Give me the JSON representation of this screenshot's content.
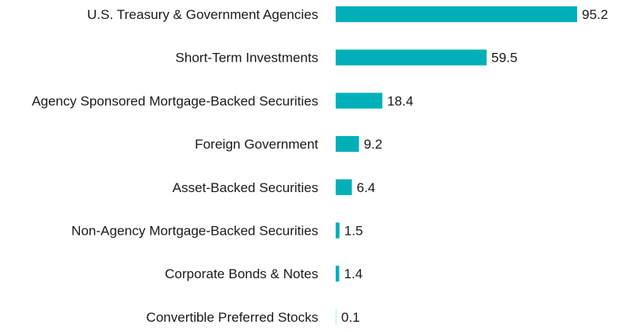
{
  "chart_data": {
    "type": "bar",
    "orientation": "horizontal",
    "categories": [
      "U.S. Treasury & Government Agencies",
      "Short-Term Investments",
      "Agency Sponsored Mortgage-Backed Securities",
      "Foreign Government",
      "Asset-Backed Securities",
      "Non-Agency Mortgage-Backed Securities",
      "Corporate Bonds & Notes",
      "Convertible Preferred Stocks"
    ],
    "values": [
      95.2,
      59.5,
      18.4,
      9.2,
      6.4,
      1.5,
      1.4,
      0.1
    ],
    "value_labels": [
      "95.2",
      "59.5",
      "18.4",
      "9.2",
      "6.4",
      "1.5",
      "1.4",
      "0.1"
    ],
    "bar_color": "#00b0b9",
    "xlim": [
      0,
      95.2
    ],
    "grid": false,
    "legend": "none"
  }
}
